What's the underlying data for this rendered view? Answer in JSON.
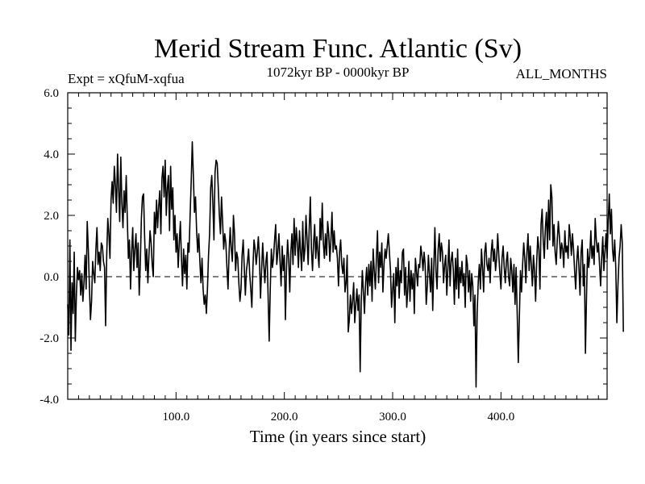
{
  "chart_data": {
    "type": "line",
    "title": "Merid Stream Func. Atlantic (Sv)",
    "left_label": "Expt = xQfuM-xqfua",
    "center_label": "1072kyr BP - 0000kyr BP",
    "right_label": "ALL_MONTHS",
    "xlabel": "Time (in years since start)",
    "ylabel": "",
    "xlim": [
      0,
      498
    ],
    "ylim": [
      -4.0,
      6.0
    ],
    "x_ticks": [
      "100.0",
      "200.0",
      "300.0",
      "400.0"
    ],
    "x_tick_values": [
      100,
      200,
      300,
      400
    ],
    "y_ticks": [
      "6.0",
      "4.0",
      "2.0",
      "0.0",
      "-2.0",
      "-4.0"
    ],
    "y_tick_values": [
      6,
      4,
      2,
      0,
      -2,
      -4
    ],
    "zero_line": true,
    "series": [
      {
        "name": "Merid Stream Func. Atlantic",
        "x_start": 0,
        "x_step": 1,
        "values": [
          -0.9,
          -1.9,
          1.2,
          -2.4,
          -0.2,
          -1.2,
          0.8,
          -2.1,
          -0.6,
          0.3,
          -0.1,
          0.2,
          -0.6,
          0.1,
          -0.8,
          -0.2,
          0.7,
          -0.4,
          1.8,
          0.9,
          -0.3,
          -1.4,
          -0.8,
          0.5,
          0.1,
          -0.2,
          0.9,
          1.6,
          0.4,
          0.8,
          0.2,
          1.1,
          1.0,
          0.5,
          0.3,
          -1.6,
          0.7,
          1.9,
          1.4,
          0.6,
          2.5,
          3.1,
          2.4,
          3.6,
          3.0,
          2.1,
          4.0,
          2.9,
          1.8,
          3.9,
          2.4,
          1.6,
          2.8,
          2.1,
          3.3,
          1.9,
          0.6,
          1.2,
          -0.4,
          0.8,
          1.6,
          0.2,
          0.9,
          1.4,
          0.3,
          1.1,
          -0.6,
          0.4,
          1.9,
          2.6,
          2.7,
          1.3,
          0.2,
          0.9,
          -0.2,
          0.7,
          1.5,
          1.1,
          0.4,
          0.0,
          2.1,
          1.4,
          2.5,
          1.6,
          2.3,
          2.8,
          1.4,
          3.2,
          3.6,
          2.6,
          3.8,
          2.0,
          2.9,
          3.3,
          1.5,
          3.6,
          2.2,
          2.9,
          1.2,
          2.0,
          0.8,
          1.4,
          0.3,
          1.1,
          1.8,
          0.6,
          -0.3,
          0.9,
          0.1,
          0.7,
          -0.4,
          1.1,
          0.8,
          2.0,
          3.1,
          4.4,
          3.3,
          2.1,
          2.6,
          1.5,
          0.8,
          1.4,
          0.5,
          -0.2,
          0.6,
          -0.4,
          -0.9,
          -0.6,
          -1.2,
          -0.4,
          0.7,
          1.4,
          2.9,
          3.3,
          2.4,
          1.2,
          3.4,
          3.8,
          3.7,
          2.9,
          2.0,
          1.4,
          2.6,
          1.8,
          0.9,
          1.4,
          1.1,
          0.3,
          -0.4,
          0.8,
          1.6,
          0.9,
          0.5,
          2.0,
          1.4,
          0.2,
          0.8,
          0.6,
          -0.2,
          -0.8,
          -0.4,
          0.7,
          1.2,
          0.3,
          -0.6,
          0.2,
          0.5,
          0.9,
          0.1,
          -0.4,
          -1.0,
          0.3,
          1.2,
          0.9,
          0.4,
          0.8,
          1.3,
          0.6,
          -0.7,
          0.2,
          1.1,
          0.4,
          -0.2,
          0.5,
          0.8,
          -0.6,
          -2.1,
          -0.4,
          0.9,
          0.3,
          0.6,
          1.2,
          1.7,
          0.4,
          0.8,
          1.4,
          0.5,
          -0.3,
          1.0,
          0.2,
          0.7,
          -1.4,
          0.3,
          1.2,
          0.6,
          -0.5,
          0.8,
          1.4,
          0.4,
          1.9,
          0.7,
          1.6,
          1.1,
          0.3,
          1.5,
          0.8,
          0.2,
          1.8,
          0.5,
          0.9,
          2.0,
          1.2,
          0.4,
          1.6,
          2.6,
          0.9,
          0.2,
          1.1,
          1.7,
          0.6,
          1.3,
          0.8,
          0.3,
          1.9,
          1.2,
          2.4,
          1.1,
          0.6,
          1.4,
          0.7,
          1.8,
          1.4,
          0.5,
          1.2,
          2.1,
          0.8,
          1.5,
          0.9,
          1.0,
          0.6,
          -0.3,
          0.8,
          1.2,
          0.4,
          0.1,
          0.6,
          -0.5,
          -0.2,
          0.7,
          -1.8,
          -1.4,
          -0.6,
          -1.2,
          -0.8,
          -0.2,
          -1.5,
          -0.9,
          -0.4,
          -1.1,
          -0.6,
          -3.1,
          -0.8,
          0.2,
          -0.5,
          -1.2,
          -0.2,
          0.3,
          -0.6,
          0.4,
          -0.3,
          0.5,
          -0.8,
          0.9,
          0.2,
          -0.4,
          0.6,
          1.5,
          -0.2,
          0.8,
          0.3,
          1.1,
          -0.5,
          0.4,
          0.9,
          0.6,
          1.0,
          1.4,
          0.8,
          0.2,
          -1.0,
          -0.4,
          0.1,
          -1.5,
          0.3,
          -0.3,
          0.6,
          -0.7,
          0.2,
          -0.2,
          0.8,
          0.9,
          -0.6,
          0.3,
          -1.0,
          -0.4,
          0.5,
          -0.8,
          0.2,
          -0.4,
          0.1,
          -1.2,
          0.6,
          0.2,
          -0.3,
          0.4,
          0.3,
          1.0,
          0.7,
          0.2,
          0.8,
          0.4,
          -0.9,
          -0.3,
          0.7,
          0.1,
          -0.5,
          0.6,
          -1.1,
          0.3,
          1.6,
          0.2,
          -0.4,
          0.9,
          1.4,
          0.5,
          1.1,
          0.8,
          -0.2,
          0.4,
          0.7,
          -0.6,
          0.3,
          1.2,
          -0.3,
          0.5,
          0.8,
          0.2,
          -0.9,
          0.6,
          -0.4,
          0.9,
          -0.7,
          0.3,
          -0.2,
          0.5,
          -0.3,
          0.1,
          -1.0,
          0.7,
          0.4,
          -0.5,
          0.2,
          -0.8,
          0.1,
          -0.3,
          -1.6,
          -0.6,
          -3.6,
          -1.2,
          -0.2,
          0.4,
          -0.4,
          0.9,
          0.3,
          -0.5,
          0.8,
          1.1,
          0.4,
          0.2,
          0.6,
          -0.2,
          0.8,
          1.2,
          0.5,
          0.9,
          0.2,
          0.6,
          1.4,
          0.7,
          0.1,
          -0.4,
          0.6,
          1.0,
          0.3,
          -0.2,
          0.5,
          0.8,
          0.0,
          -0.3,
          0.6,
          0.2,
          -0.5,
          0.4,
          -0.9,
          0.3,
          -1.2,
          -2.8,
          -1.3,
          0.2,
          -0.5,
          0.4,
          1.1,
          0.6,
          -0.2,
          0.8,
          1.4,
          0.2,
          1.0,
          0.4,
          -0.3,
          0.7,
          0.2,
          -0.8,
          0.5,
          1.3,
          0.9,
          -0.4,
          1.7,
          2.2,
          1.2,
          0.6,
          1.6,
          2.1,
          0.9,
          2.5,
          1.2,
          3.0,
          2.6,
          1.0,
          1.7,
          0.8,
          0.4,
          1.2,
          1.8,
          1.3,
          0.6,
          1.1,
          0.9,
          0.3,
          1.5,
          0.8,
          1.0,
          0.6,
          1.7,
          1.3,
          0.7,
          1.4,
          0.9,
          0.2,
          -0.4,
          0.5,
          1.0,
          0.3,
          -0.6,
          0.8,
          1.2,
          -0.3,
          0.4,
          -2.5,
          -0.6,
          0.9,
          0.3,
          0.7,
          1.5,
          0.6,
          1.0,
          0.4,
          1.9,
          1.2,
          0.8,
          1.1,
          0.4,
          -0.3,
          0.6,
          1.3,
          0.2,
          0.8,
          1.4,
          0.6,
          1.8,
          2.7,
          1.4,
          2.2,
          0.9,
          0.5,
          1.2,
          0.3,
          -1.5,
          -0.3,
          0.6,
          1.0,
          1.7,
          1.1,
          -1.8
        ]
      }
    ]
  }
}
